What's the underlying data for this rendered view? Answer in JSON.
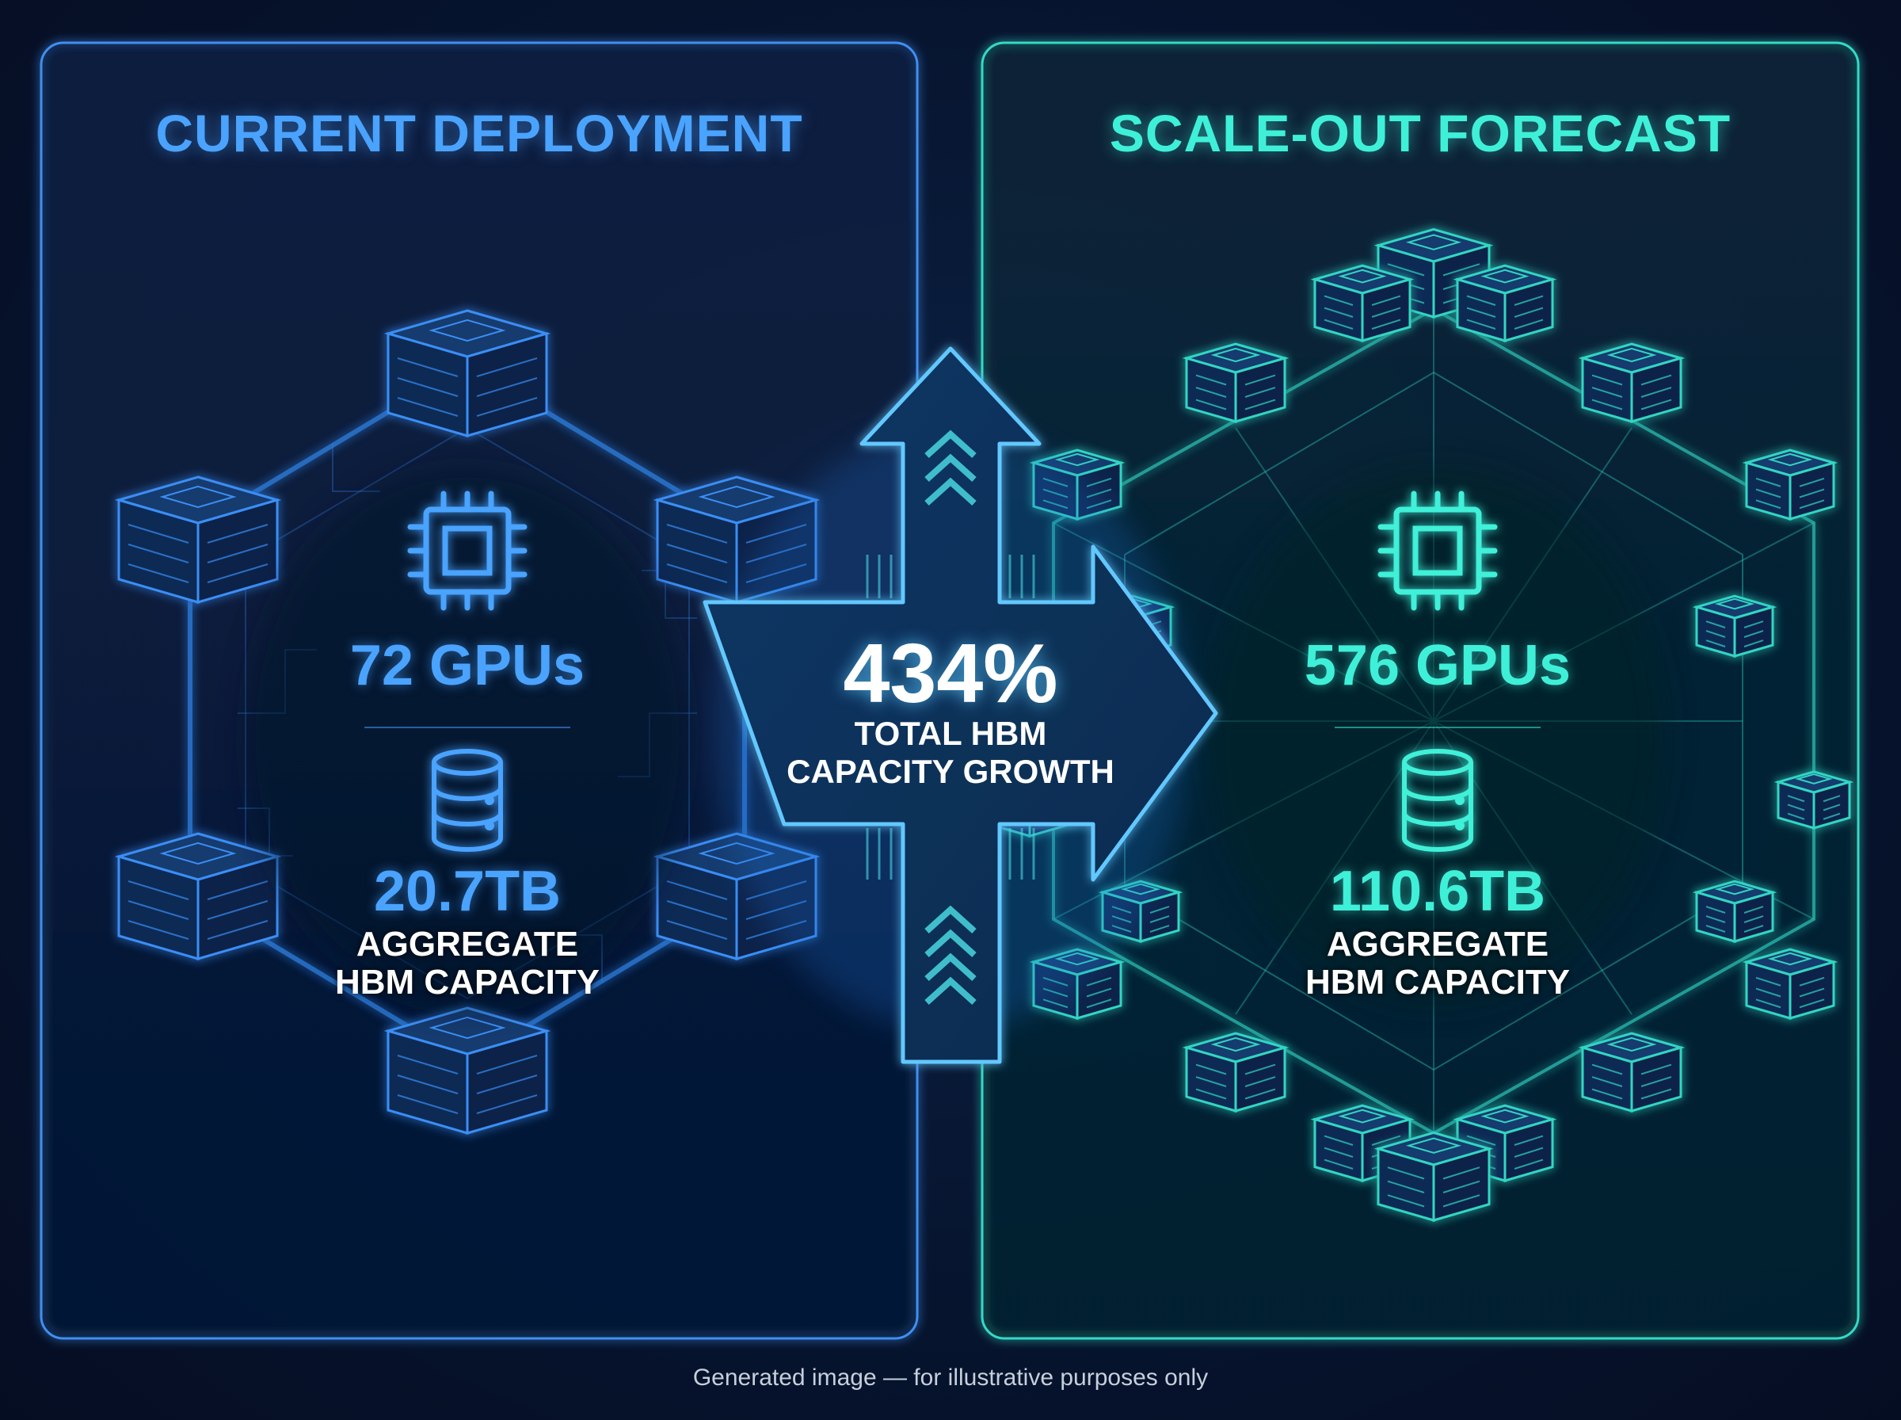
{
  "left_panel": {
    "title": "CURRENT DEPLOYMENT",
    "gpus": "72 GPUs",
    "hbm": "20.7TB",
    "hbm_label_line1": "AGGREGATE",
    "hbm_label_line2": "HBM CAPACITY",
    "accent_color": "#4aa3ff",
    "gpu_icon": "chip-icon",
    "hbm_icon": "database-icon"
  },
  "right_panel": {
    "title": "SCALE-OUT FORECAST",
    "gpus": "576 GPUs",
    "hbm": "110.6TB",
    "hbm_label_line1": "AGGREGATE",
    "hbm_label_line2": "HBM CAPACITY",
    "accent_color": "#3ff0d8",
    "gpu_icon": "chip-icon",
    "hbm_icon": "database-icon"
  },
  "growth": {
    "value": "434%",
    "label_line1": "TOTAL HBM",
    "label_line2": "CAPACITY GROWTH"
  },
  "footnote": "Generated image — for illustrative purposes only"
}
